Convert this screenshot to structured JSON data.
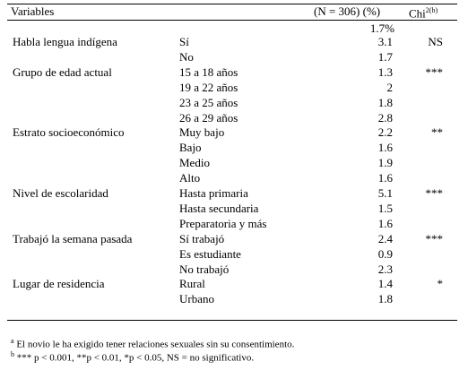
{
  "table": {
    "header": {
      "variables": "Variables",
      "n": "(N = 306) (%)",
      "chi": "Chi",
      "chi_sup": "2(b)"
    },
    "total": "1.7%",
    "groups": [
      {
        "variable": "Habla lengua indígena",
        "chi": "NS",
        "rows": [
          {
            "category": "Sí",
            "value": "3.1"
          },
          {
            "category": "No",
            "value": "1.7"
          }
        ]
      },
      {
        "variable": "Grupo de edad actual",
        "chi": "***",
        "rows": [
          {
            "category": "15 a 18 años",
            "value": "1.3"
          },
          {
            "category": "19 a 22 años",
            "value": "2"
          },
          {
            "category": "23 a 25 años",
            "value": "1.8"
          },
          {
            "category": "26 a 29 años",
            "value": "2.8"
          }
        ]
      },
      {
        "variable": "Estrato socioeconómico",
        "chi": "**",
        "rows": [
          {
            "category": "Muy bajo",
            "value": "2.2"
          },
          {
            "category": "Bajo",
            "value": "1.6"
          },
          {
            "category": "Medio",
            "value": "1.9"
          },
          {
            "category": "Alto",
            "value": "1.6"
          }
        ]
      },
      {
        "variable": "Nivel de escolaridad",
        "chi": "***",
        "rows": [
          {
            "category": "Hasta primaria",
            "value": "5.1"
          },
          {
            "category": "Hasta secundaria",
            "value": "1.5"
          },
          {
            "category": "Preparatoria y más",
            "value": "1.6"
          }
        ]
      },
      {
        "variable": "Trabajó la semana pasada",
        "chi": "***",
        "rows": [
          {
            "category": "Sí trabajó",
            "value": "2.4"
          },
          {
            "category": "Es estudiante",
            "value": "0.9"
          },
          {
            "category": "No trabajó",
            "value": "2.3"
          }
        ]
      },
      {
        "variable": "Lugar de residencia",
        "chi": "*",
        "rows": [
          {
            "category": "Rural",
            "value": "1.4"
          },
          {
            "category": "Urbano",
            "value": "1.8"
          }
        ]
      }
    ]
  },
  "footnotes": [
    {
      "mark": "a",
      "text": " El novio le ha exigido tener relaciones sexuales sin su consentimiento."
    },
    {
      "mark": "b",
      "text": " *** p < 0.001, **p < 0.01, *p < 0.05, NS = no significativo."
    }
  ]
}
